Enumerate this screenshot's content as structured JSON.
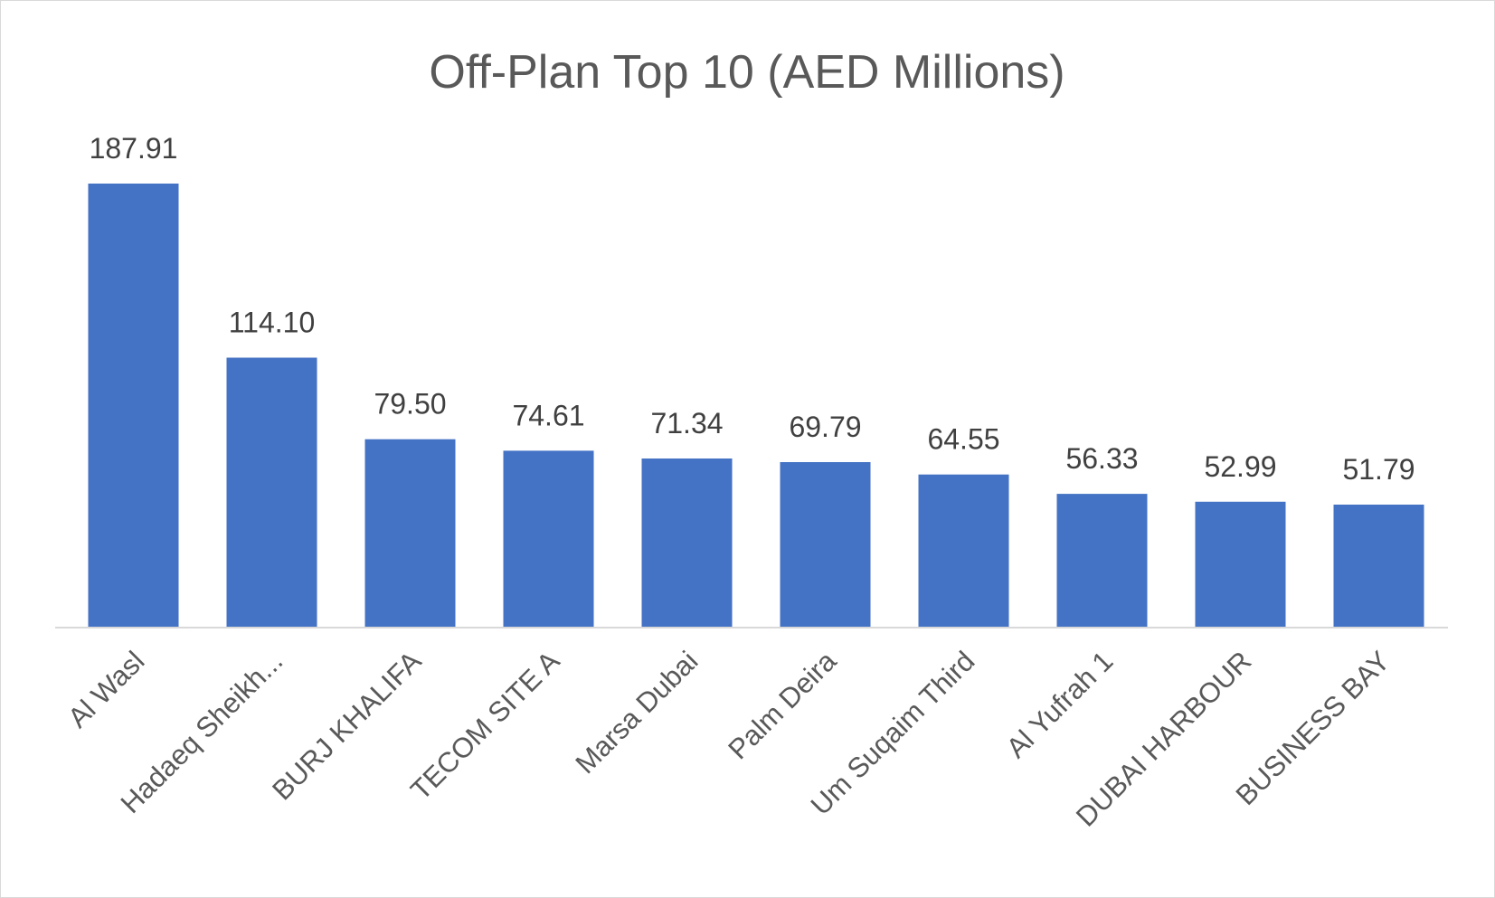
{
  "chart_data": {
    "type": "bar",
    "title": "Off-Plan Top 10 (AED Millions)",
    "xlabel": "",
    "ylabel": "",
    "categories": [
      "Al Wasl",
      "Hadaeq Sheikh...",
      "BURJ KHALIFA",
      "TECOM SITE A",
      "Marsa Dubai",
      "Palm Deira",
      "Um Suqaim Third",
      "Al Yufrah 1",
      "DUBAI HARBOUR",
      "BUSINESS BAY"
    ],
    "values": [
      187.91,
      114.1,
      79.5,
      74.61,
      71.34,
      69.79,
      64.55,
      56.33,
      52.99,
      51.79
    ],
    "data_labels": [
      "187.91",
      "114.10",
      "79.50",
      "74.61",
      "71.34",
      "69.79",
      "64.55",
      "56.33",
      "52.99",
      "51.79"
    ],
    "ylim": [
      0,
      187.91
    ],
    "grid": false,
    "legend": "none",
    "bar_color": "#4472C4",
    "axis_color": "#d9d9d9"
  }
}
